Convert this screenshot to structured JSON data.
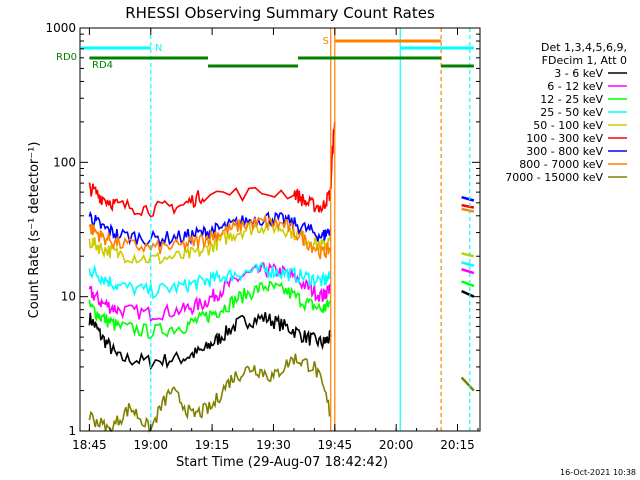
{
  "chart_data": {
    "type": "line",
    "title": "RHESSI Observing Summary Count Rates",
    "xlabel": "Start Time (29-Aug-07 18:42:42)",
    "ylabel": "Count Rate (s⁻¹ detector⁻¹)",
    "yscale": "log",
    "ylim": [
      1,
      1000
    ],
    "xlim": [
      "18:42:42",
      "20:20:30"
    ],
    "x_ticks": [
      "18:45",
      "19:00",
      "19:15",
      "19:30",
      "19:45",
      "20:00",
      "20:15"
    ],
    "y_ticks": [
      "1",
      "10",
      "100",
      "1000"
    ],
    "timestamp": "16-Oct-2021 10:38",
    "legend": {
      "header": [
        "Det 1,3,4,5,6,9,",
        "FDecim 1, Att 0"
      ],
      "placement": "right"
    },
    "series": [
      {
        "name": "3 - 6 keV",
        "color": "#000000",
        "x": [
          "18:45",
          "18:48",
          "18:52",
          "19:00",
          "19:08",
          "19:13",
          "19:17",
          "19:22",
          "19:28",
          "19:33",
          "19:38",
          "19:42",
          "19:44"
        ],
        "values": [
          7,
          5,
          3.5,
          3.3,
          3.5,
          4,
          5,
          6.5,
          7,
          6,
          5,
          4.5,
          5
        ]
      },
      {
        "name": "6 - 12 keV",
        "color": "#ff00ff",
        "x": [
          "18:45",
          "18:48",
          "18:52",
          "19:00",
          "19:08",
          "19:13",
          "19:17",
          "19:22",
          "19:28",
          "19:33",
          "19:38",
          "19:42",
          "19:44"
        ],
        "values": [
          11,
          9,
          8,
          7.5,
          8,
          9,
          11,
          14,
          16,
          15,
          12,
          10,
          12
        ]
      },
      {
        "name": "12 - 25 keV",
        "color": "#00ff00",
        "x": [
          "18:45",
          "18:48",
          "18:52",
          "19:00",
          "19:08",
          "19:13",
          "19:17",
          "19:22",
          "19:28",
          "19:33",
          "19:38",
          "19:42",
          "19:44"
        ],
        "values": [
          8.5,
          7,
          6,
          5.5,
          6,
          7,
          8,
          10,
          12,
          11,
          9,
          8,
          9
        ]
      },
      {
        "name": "25 - 50 keV",
        "color": "#00ffff",
        "x": [
          "18:45",
          "18:48",
          "18:52",
          "19:00",
          "19:08",
          "19:13",
          "19:17",
          "19:22",
          "19:28",
          "19:33",
          "19:38",
          "19:42",
          "19:44"
        ],
        "values": [
          16,
          14,
          12,
          11,
          12,
          13,
          14,
          15,
          16,
          15,
          14,
          13,
          14
        ]
      },
      {
        "name": "50 - 100 keV",
        "color": "#cccc00",
        "x": [
          "18:45",
          "18:48",
          "18:52",
          "19:00",
          "19:08",
          "19:13",
          "19:17",
          "19:22",
          "19:28",
          "19:33",
          "19:38",
          "19:42",
          "19:44"
        ],
        "values": [
          26,
          23,
          21,
          19,
          20,
          22,
          26,
          31,
          34,
          32,
          27,
          24,
          26
        ]
      },
      {
        "name": "100 - 300 keV",
        "color": "#ff0000",
        "x": [
          "18:45",
          "18:48",
          "18:52",
          "19:00",
          "19:08",
          "19:13",
          "19:35",
          "19:38",
          "19:42",
          "19:44",
          "19:45"
        ],
        "values": [
          65,
          55,
          48,
          45,
          48,
          58,
          60,
          50,
          46,
          60,
          200
        ]
      },
      {
        "name": "300 - 800 keV",
        "color": "#0000ff",
        "x": [
          "18:45",
          "18:48",
          "18:52",
          "19:00",
          "19:08",
          "19:13",
          "19:17",
          "19:22",
          "19:28",
          "19:33",
          "19:38",
          "19:42",
          "19:44"
        ],
        "values": [
          40,
          33,
          29,
          27,
          28,
          30,
          32,
          36,
          39,
          37,
          32,
          28,
          32
        ]
      },
      {
        "name": "800 - 7000 keV",
        "color": "#ff8000",
        "x": [
          "18:45",
          "18:48",
          "18:52",
          "19:00",
          "19:08",
          "19:13",
          "19:17",
          "19:22",
          "19:28",
          "19:33",
          "19:38",
          "19:42",
          "19:44"
        ],
        "values": [
          33,
          28,
          25,
          23,
          24,
          27,
          30,
          34,
          36,
          34,
          26,
          21,
          23
        ]
      },
      {
        "name": "7000 - 15000 keV",
        "color": "#808000",
        "x": [
          "18:45",
          "18:50",
          "18:55",
          "19:00",
          "19:05",
          "19:10",
          "19:15",
          "19:20",
          "19:25",
          "19:30",
          "19:35",
          "19:40",
          "19:44"
        ],
        "values": [
          1.3,
          1,
          1.5,
          1,
          2,
          1.3,
          1.5,
          2.5,
          3,
          2.5,
          3.5,
          3,
          1.3
        ]
      }
    ],
    "after_gap": {
      "x": [
        "20:16",
        "20:19"
      ],
      "levels": [
        {
          "color": "#0000ff",
          "values": [
            55,
            52
          ]
        },
        {
          "color": "#ff0000",
          "values": [
            48,
            46
          ]
        },
        {
          "color": "#ff8000",
          "values": [
            45,
            43
          ]
        },
        {
          "color": "#cccc00",
          "values": [
            21,
            20
          ]
        },
        {
          "color": "#00ffff",
          "values": [
            18,
            17
          ]
        },
        {
          "color": "#ff00ff",
          "values": [
            16,
            15
          ]
        },
        {
          "color": "#00ff00",
          "values": [
            13,
            12
          ]
        },
        {
          "color": "#000000",
          "values": [
            11,
            10
          ]
        },
        {
          "color": "#808000",
          "values": [
            2.5,
            2
          ]
        }
      ]
    },
    "annotations": [
      {
        "label": "N",
        "color": "#00ffff"
      },
      {
        "label": "S",
        "color": "#ff8000"
      },
      {
        "label": "RD0",
        "color": "#008000"
      },
      {
        "label": "RD4",
        "color": "#008000"
      }
    ]
  }
}
